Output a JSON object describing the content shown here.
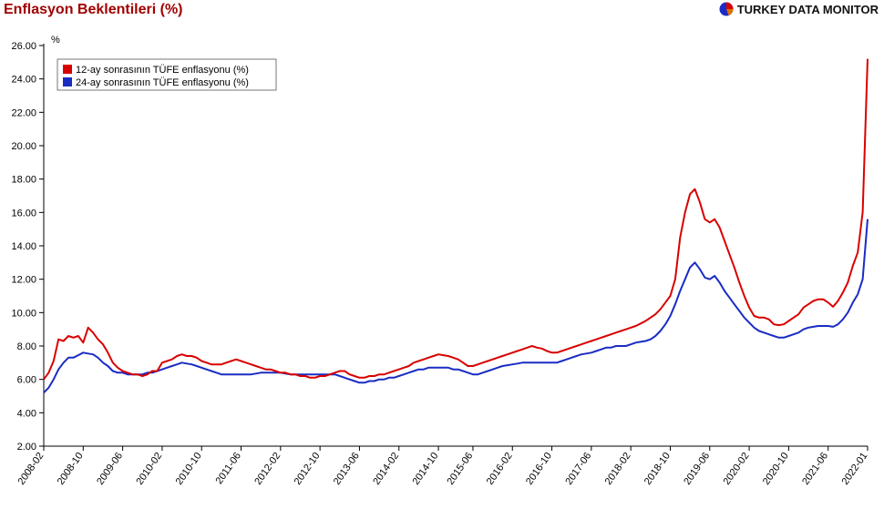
{
  "title": "Enflasyon Beklentileri (%)",
  "brand": "TURKEY DATA MONITOR",
  "y_unit_label": "%",
  "legend": {
    "series1": "12-ay sonrasının TÜFE enflasyonu (%)",
    "series2": "24-ay sonrasının TÜFE enflasyonu (%)"
  },
  "chart": {
    "type": "line",
    "colors": {
      "series1": "#d90000",
      "series2": "#1a2cc4",
      "axis": "#000000",
      "grid": "#000000",
      "background": "#ffffff",
      "title": "#a00000"
    },
    "line_width": 2,
    "ylim": [
      2,
      26
    ],
    "ytick_step": 2,
    "yticks": [
      "2.00",
      "4.00",
      "6.00",
      "8.00",
      "10.00",
      "12.00",
      "14.00",
      "16.00",
      "18.00",
      "20.00",
      "22.00",
      "24.00",
      "26.00"
    ],
    "x_labels": [
      "2008-02",
      "2008-10",
      "2009-06",
      "2010-02",
      "2010-10",
      "2011-06",
      "2012-02",
      "2012-10",
      "2013-06",
      "2014-02",
      "2014-10",
      "2015-06",
      "2016-02",
      "2016-10",
      "2017-06",
      "2018-02",
      "2018-10",
      "2019-06",
      "2020-02",
      "2020-10",
      "2021-06",
      "2022-01"
    ],
    "x_label_fontsize": 11,
    "y_label_fontsize": 11,
    "title_fontsize": 16,
    "x_n": 168,
    "series1": [
      6.0,
      6.4,
      7.1,
      8.4,
      8.3,
      8.6,
      8.5,
      8.6,
      8.2,
      9.1,
      8.8,
      8.4,
      8.1,
      7.6,
      7.0,
      6.7,
      6.5,
      6.4,
      6.3,
      6.3,
      6.2,
      6.3,
      6.5,
      6.5,
      7.0,
      7.1,
      7.2,
      7.4,
      7.5,
      7.4,
      7.4,
      7.3,
      7.1,
      7.0,
      6.9,
      6.9,
      6.9,
      7.0,
      7.1,
      7.2,
      7.1,
      7.0,
      6.9,
      6.8,
      6.7,
      6.6,
      6.6,
      6.5,
      6.4,
      6.4,
      6.3,
      6.3,
      6.2,
      6.2,
      6.1,
      6.1,
      6.2,
      6.2,
      6.3,
      6.4,
      6.5,
      6.5,
      6.3,
      6.2,
      6.1,
      6.1,
      6.2,
      6.2,
      6.3,
      6.3,
      6.4,
      6.5,
      6.6,
      6.7,
      6.8,
      7.0,
      7.1,
      7.2,
      7.3,
      7.4,
      7.5,
      7.45,
      7.4,
      7.3,
      7.2,
      7.0,
      6.8,
      6.8,
      6.9,
      7.0,
      7.1,
      7.2,
      7.3,
      7.4,
      7.5,
      7.6,
      7.7,
      7.8,
      7.9,
      8.0,
      7.9,
      7.85,
      7.7,
      7.6,
      7.6,
      7.7,
      7.8,
      7.9,
      8.0,
      8.1,
      8.2,
      8.3,
      8.4,
      8.5,
      8.6,
      8.7,
      8.8,
      8.9,
      9.0,
      9.1,
      9.2,
      9.35,
      9.5,
      9.7,
      9.9,
      10.2,
      10.6,
      11.0,
      12.0,
      14.5,
      16.0,
      17.1,
      17.4,
      16.6,
      15.6,
      15.4,
      15.6,
      15.1,
      14.3,
      13.5,
      12.7,
      11.8,
      11.0,
      10.3,
      9.8,
      9.7,
      9.7,
      9.6,
      9.3,
      9.25,
      9.3,
      9.5,
      9.7,
      9.9,
      10.3,
      10.5,
      10.7,
      10.8,
      10.8,
      10.6,
      10.35,
      10.7,
      11.2,
      11.8,
      12.8,
      13.6,
      16.0,
      25.2
    ],
    "series2": [
      5.2,
      5.5,
      6.0,
      6.6,
      7.0,
      7.3,
      7.3,
      7.45,
      7.6,
      7.55,
      7.5,
      7.3,
      7.0,
      6.8,
      6.5,
      6.4,
      6.4,
      6.3,
      6.3,
      6.3,
      6.3,
      6.4,
      6.4,
      6.5,
      6.6,
      6.7,
      6.8,
      6.9,
      7.0,
      6.95,
      6.9,
      6.8,
      6.7,
      6.6,
      6.5,
      6.4,
      6.3,
      6.3,
      6.3,
      6.3,
      6.3,
      6.3,
      6.3,
      6.35,
      6.4,
      6.4,
      6.4,
      6.4,
      6.4,
      6.35,
      6.3,
      6.3,
      6.3,
      6.3,
      6.3,
      6.3,
      6.3,
      6.3,
      6.3,
      6.3,
      6.2,
      6.1,
      6.0,
      5.9,
      5.8,
      5.8,
      5.9,
      5.9,
      6.0,
      6.0,
      6.1,
      6.1,
      6.2,
      6.3,
      6.4,
      6.5,
      6.6,
      6.6,
      6.7,
      6.7,
      6.7,
      6.7,
      6.7,
      6.6,
      6.6,
      6.5,
      6.4,
      6.3,
      6.3,
      6.4,
      6.5,
      6.6,
      6.7,
      6.8,
      6.85,
      6.9,
      6.95,
      7.0,
      7.0,
      7.0,
      7.0,
      7.0,
      7.0,
      7.0,
      7.0,
      7.1,
      7.2,
      7.3,
      7.4,
      7.5,
      7.55,
      7.6,
      7.7,
      7.8,
      7.9,
      7.9,
      8.0,
      8.0,
      8.0,
      8.1,
      8.2,
      8.25,
      8.3,
      8.4,
      8.6,
      8.9,
      9.3,
      9.8,
      10.5,
      11.3,
      12.0,
      12.7,
      13.0,
      12.6,
      12.1,
      12.0,
      12.2,
      11.8,
      11.3,
      10.9,
      10.5,
      10.1,
      9.7,
      9.4,
      9.1,
      8.9,
      8.8,
      8.7,
      8.6,
      8.5,
      8.5,
      8.6,
      8.7,
      8.8,
      9.0,
      9.1,
      9.15,
      9.2,
      9.2,
      9.2,
      9.15,
      9.3,
      9.6,
      10.0,
      10.6,
      11.1,
      12.0,
      15.6
    ]
  }
}
